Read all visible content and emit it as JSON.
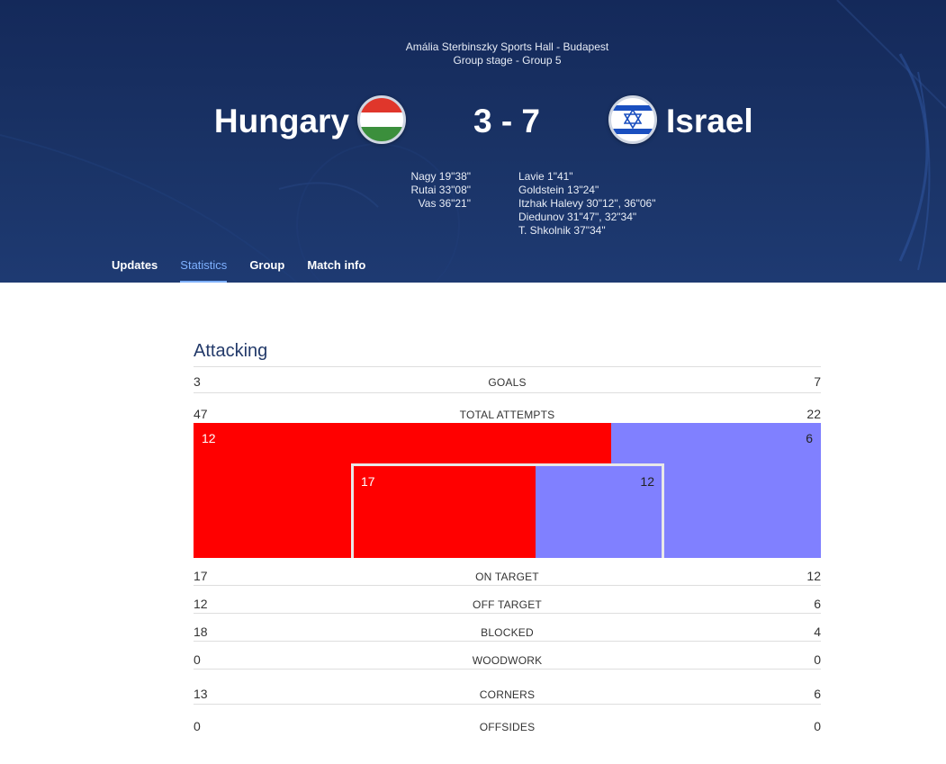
{
  "match": {
    "venue": "Amália Sterbinszky Sports Hall - Budapest",
    "stage": "Group stage - Group 5",
    "home_team": "Hungary",
    "away_team": "Israel",
    "score": "3 - 7",
    "home_scorers": [
      "Nagy 19\"38\"",
      "Rutai 33\"08\"",
      "Vas 36\"21\""
    ],
    "away_scorers": [
      "Lavie 1\"41\"",
      "Goldstein 13\"24\"",
      "Itzhak Halevy 30\"12\", 36\"06\"",
      "Diedunov 31\"47\", 32\"34\"",
      "T. Shkolnik 37\"34\""
    ]
  },
  "tabs": [
    {
      "label": "Updates",
      "active": false
    },
    {
      "label": "Statistics",
      "active": true
    },
    {
      "label": "Group",
      "active": false
    },
    {
      "label": "Match info",
      "active": false
    }
  ],
  "stats": {
    "section_title": "Attacking",
    "goals": {
      "label": "GOALS",
      "home": "3",
      "away": "7"
    },
    "total_attempts": {
      "label": "TOTAL ATTEMPTS",
      "home": "47",
      "away": "22"
    },
    "attempts_graphic": {
      "home_off_target": "12",
      "away_off_target": "6",
      "home_on_target": "17",
      "away_on_target": "12"
    },
    "on_target": {
      "label": "ON TARGET",
      "home": "17",
      "away": "12"
    },
    "off_target": {
      "label": "OFF TARGET",
      "home": "12",
      "away": "6"
    },
    "blocked": {
      "label": "BLOCKED",
      "home": "18",
      "away": "4"
    },
    "woodwork": {
      "label": "WOODWORK",
      "home": "0",
      "away": "0"
    },
    "corners": {
      "label": "CORNERS",
      "home": "13",
      "away": "6"
    },
    "offsides": {
      "label": "OFFSIDES",
      "home": "0",
      "away": "0"
    }
  },
  "colors": {
    "header_bg": "#1a3366",
    "home_color": "#ff0000",
    "away_color": "#8080ff",
    "active_tab": "#7fb1ff",
    "section_title": "#233a6a"
  }
}
